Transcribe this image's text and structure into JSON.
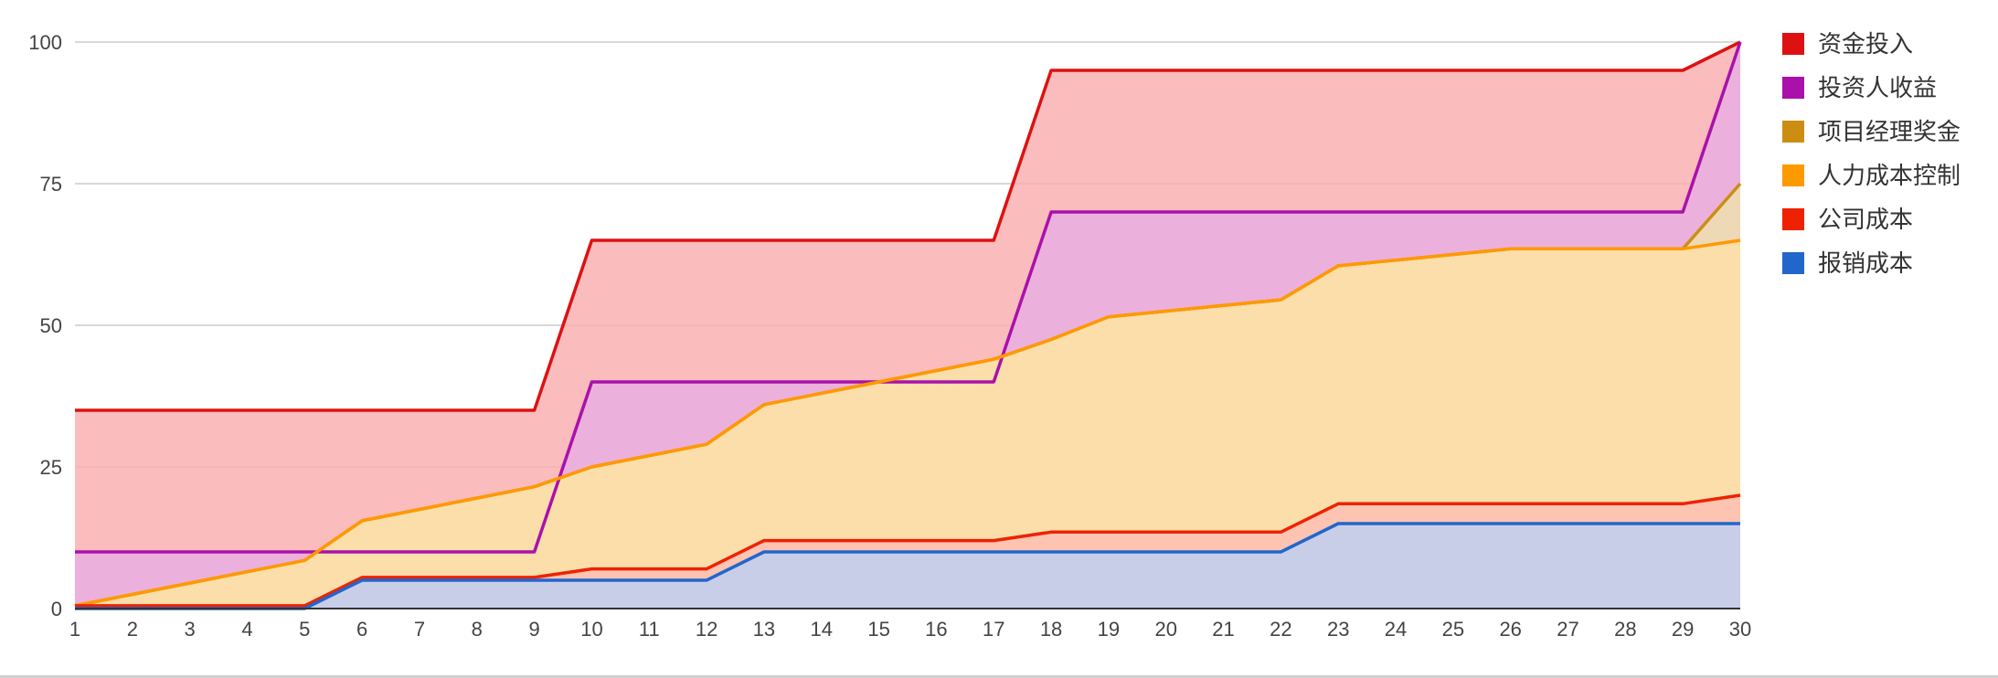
{
  "chart_data": {
    "type": "area",
    "x": [
      1,
      2,
      3,
      4,
      5,
      6,
      7,
      8,
      9,
      10,
      11,
      12,
      13,
      14,
      15,
      16,
      17,
      18,
      19,
      20,
      21,
      22,
      23,
      24,
      25,
      26,
      27,
      28,
      29,
      30
    ],
    "ylim": [
      0,
      100
    ],
    "yticks": [
      0,
      25,
      50,
      75,
      100
    ],
    "grid": true,
    "legend_position": "right",
    "series": [
      {
        "name": "资金投入",
        "color": "#dd1111",
        "fill": "#f9b0b0",
        "values": [
          35,
          35,
          35,
          35,
          35,
          35,
          35,
          35,
          35,
          65,
          65,
          65,
          65,
          65,
          65,
          65,
          65,
          95,
          95,
          95,
          95,
          95,
          95,
          95,
          95,
          95,
          95,
          95,
          95,
          100
        ]
      },
      {
        "name": "投资人收益",
        "color": "#aa11aa",
        "fill": "#e9aee3",
        "values": [
          10,
          10,
          10,
          10,
          10,
          10,
          10,
          10,
          10,
          40,
          40,
          40,
          40,
          40,
          40,
          40,
          40,
          70,
          70,
          70,
          70,
          70,
          70,
          70,
          70,
          70,
          70,
          70,
          70,
          100
        ]
      },
      {
        "name": "项目经理奖金",
        "color": "#cc8e12",
        "fill": "#eee0b0",
        "values": [
          0.5,
          2.5,
          4.5,
          6.5,
          8.5,
          15.5,
          17.5,
          19.5,
          21.5,
          25,
          27,
          29,
          36,
          38,
          40,
          42,
          44,
          47.5,
          51.5,
          52.5,
          53.5,
          54.5,
          60.5,
          61.5,
          62.5,
          63.5,
          63.5,
          63.5,
          63.5,
          75
        ]
      },
      {
        "name": "人力成本控制",
        "color": "#ff9900",
        "fill": "#fddea8",
        "values": [
          0.5,
          2.5,
          4.5,
          6.5,
          8.5,
          15.5,
          17.5,
          19.5,
          21.5,
          25,
          27,
          29,
          36,
          38,
          40,
          42,
          44,
          47.5,
          51.5,
          52.5,
          53.5,
          54.5,
          60.5,
          61.5,
          62.5,
          63.5,
          63.5,
          63.5,
          63.5,
          65
        ]
      },
      {
        "name": "公司成本",
        "color": "#ee2200",
        "fill": "#fbbfb3",
        "values": [
          0.5,
          0.5,
          0.5,
          0.5,
          0.5,
          5.5,
          5.5,
          5.5,
          5.5,
          7,
          7,
          7,
          12,
          12,
          12,
          12,
          12,
          13.5,
          13.5,
          13.5,
          13.5,
          13.5,
          18.5,
          18.5,
          18.5,
          18.5,
          18.5,
          18.5,
          18.5,
          20
        ]
      },
      {
        "name": "报销成本",
        "color": "#2266cc",
        "fill": "#bfd0f2",
        "values": [
          0,
          0,
          0,
          0,
          0,
          5,
          5,
          5,
          5,
          5,
          5,
          5,
          10,
          10,
          10,
          10,
          10,
          10,
          10,
          10,
          10,
          10,
          15,
          15,
          15,
          15,
          15,
          15,
          15,
          15
        ]
      }
    ]
  }
}
